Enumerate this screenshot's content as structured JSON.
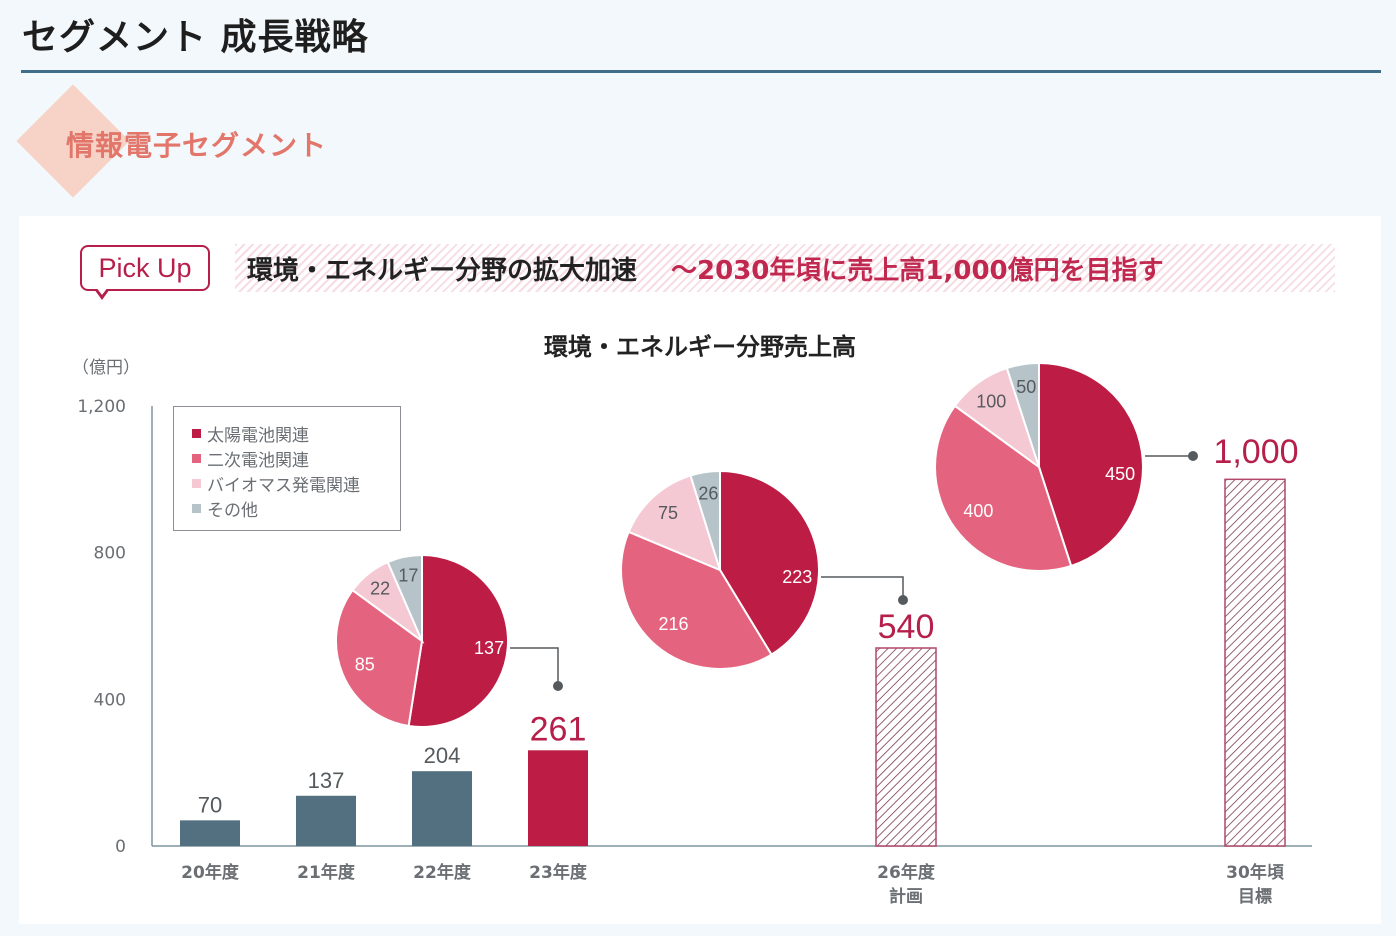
{
  "header": {
    "title": "セグメント 成長戦略",
    "segment_title": "情報電子セグメント"
  },
  "pickup": {
    "badge": "Pick Up",
    "headline": "環境・エネルギー分野の拡大加速",
    "subheadline": "～2030年頃に売上高1,000億円を目指す"
  },
  "colors": {
    "past_bar": "#52707f",
    "current_bar": "#bd1d45",
    "target_hatch": "#b1476a",
    "accent": "#b51f4a",
    "solar": "#bd1d45",
    "secondary_battery": "#e4647f",
    "biomass": "#f5c9d3",
    "other": "#b6c4ca"
  },
  "chart_data": {
    "type": "bar",
    "title": "環境・エネルギー分野売上高",
    "ylabel": "（億円）",
    "xlabel": "",
    "ylim": [
      0,
      1200
    ],
    "yticks": [
      {
        "value": 0,
        "label": "0"
      },
      {
        "value": 400,
        "label": "400"
      },
      {
        "value": 800,
        "label": "800"
      },
      {
        "value": 1200,
        "label": "1,200"
      }
    ],
    "grid": false,
    "legend_position": "top-left",
    "legend": [
      "太陽電池関連",
      "二次電池関連",
      "バイオマス発電関連",
      "その他"
    ],
    "categories": [
      {
        "label": "20年度",
        "sublabel": ""
      },
      {
        "label": "21年度",
        "sublabel": ""
      },
      {
        "label": "22年度",
        "sublabel": ""
      },
      {
        "label": "23年度",
        "sublabel": ""
      },
      {
        "label": "26年度",
        "sublabel": "計画"
      },
      {
        "label": "30年頃",
        "sublabel": "目標"
      }
    ],
    "values": [
      70,
      137,
      204,
      261,
      540,
      1000
    ],
    "value_labels": [
      "70",
      "137",
      "204",
      "261",
      "540",
      "1,000"
    ],
    "bar_styles": [
      "actual",
      "actual",
      "actual",
      "highlight",
      "hatched",
      "hatched"
    ],
    "pies": [
      {
        "for_category": "23年度",
        "slices": [
          {
            "name": "太陽電池関連",
            "value": 137
          },
          {
            "name": "二次電池関連",
            "value": 85
          },
          {
            "name": "バイオマス発電関連",
            "value": 22
          },
          {
            "name": "その他",
            "value": 17
          }
        ]
      },
      {
        "for_category": "26年度",
        "slices": [
          {
            "name": "太陽電池関連",
            "value": 223
          },
          {
            "name": "二次電池関連",
            "value": 216
          },
          {
            "name": "バイオマス発電関連",
            "value": 75
          },
          {
            "name": "その他",
            "value": 26
          }
        ]
      },
      {
        "for_category": "30年頃",
        "slices": [
          {
            "name": "太陽電池関連",
            "value": 450
          },
          {
            "name": "二次電池関連",
            "value": 400
          },
          {
            "name": "バイオマス発電関連",
            "value": 100
          },
          {
            "name": "その他",
            "value": 50
          }
        ]
      }
    ]
  }
}
